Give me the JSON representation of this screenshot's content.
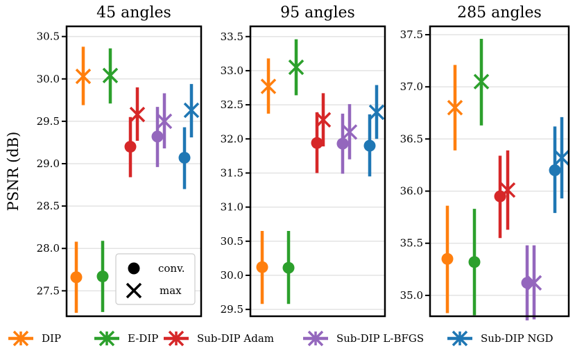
{
  "chart_data": {
    "type": "errorbar",
    "ylabel": "PSNR (dB)",
    "methods": [
      {
        "name": "DIP",
        "color": "#ff7f0e"
      },
      {
        "name": "E-DIP",
        "color": "#2ca02c"
      },
      {
        "name": "Sub-DIP Adam",
        "color": "#d62728"
      },
      {
        "name": "Sub-DIP L-BFGS",
        "color": "#9467bd"
      },
      {
        "name": "Sub-DIP NGD",
        "color": "#1f77b4"
      }
    ],
    "marker_legend": [
      {
        "marker": "circle",
        "label": "conv."
      },
      {
        "marker": "x",
        "label": "max"
      }
    ],
    "panels": [
      {
        "title": "45 angles",
        "ylim": [
          27.2,
          30.62
        ],
        "yticks": [
          27.5,
          28.0,
          28.5,
          29.0,
          29.5,
          30.0,
          30.5
        ],
        "tick_labels": [
          "27.5",
          "28.0",
          "28.5",
          "29.0",
          "29.5",
          "30.0",
          "30.5"
        ],
        "series": [
          {
            "method": "DIP",
            "conv": {
              "value": 27.66,
              "low": 27.24,
              "high": 28.08
            },
            "max": {
              "value": 30.03,
              "low": 29.69,
              "high": 30.38
            }
          },
          {
            "method": "E-DIP",
            "conv": {
              "value": 27.67,
              "low": 27.25,
              "high": 28.09
            },
            "max": {
              "value": 30.04,
              "low": 29.71,
              "high": 30.36
            }
          },
          {
            "method": "Sub-DIP Adam",
            "conv": {
              "value": 29.2,
              "low": 28.84,
              "high": 29.55
            },
            "max": {
              "value": 29.58,
              "low": 29.27,
              "high": 29.9
            }
          },
          {
            "method": "Sub-DIP L-BFGS",
            "conv": {
              "value": 29.32,
              "low": 28.96,
              "high": 29.67
            },
            "max": {
              "value": 29.5,
              "low": 29.18,
              "high": 29.83
            }
          },
          {
            "method": "Sub-DIP NGD",
            "conv": {
              "value": 29.07,
              "low": 28.7,
              "high": 29.43
            },
            "max": {
              "value": 29.63,
              "low": 29.31,
              "high": 29.94
            }
          }
        ]
      },
      {
        "title": "95 angles",
        "ylim": [
          29.4,
          33.65
        ],
        "yticks": [
          29.5,
          30.0,
          30.5,
          31.0,
          31.5,
          32.0,
          32.5,
          33.0,
          33.5
        ],
        "tick_labels": [
          "29.5",
          "30.0",
          "30.5",
          "31.0",
          "31.5",
          "32.0",
          "32.5",
          "33.0",
          "33.5"
        ],
        "series": [
          {
            "method": "DIP",
            "conv": {
              "value": 30.12,
              "low": 29.58,
              "high": 30.65
            },
            "max": {
              "value": 32.77,
              "low": 32.37,
              "high": 33.18
            }
          },
          {
            "method": "E-DIP",
            "conv": {
              "value": 30.11,
              "low": 29.58,
              "high": 30.65
            },
            "max": {
              "value": 33.05,
              "low": 32.64,
              "high": 33.46
            }
          },
          {
            "method": "Sub-DIP Adam",
            "conv": {
              "value": 31.94,
              "low": 31.5,
              "high": 32.39
            },
            "max": {
              "value": 32.28,
              "low": 31.89,
              "high": 32.67
            }
          },
          {
            "method": "Sub-DIP L-BFGS",
            "conv": {
              "value": 31.93,
              "low": 31.49,
              "high": 32.37
            },
            "max": {
              "value": 32.1,
              "low": 31.7,
              "high": 32.51
            }
          },
          {
            "method": "Sub-DIP NGD",
            "conv": {
              "value": 31.9,
              "low": 31.45,
              "high": 32.36
            },
            "max": {
              "value": 32.39,
              "low": 32.0,
              "high": 32.79
            }
          }
        ]
      },
      {
        "title": "285 angles",
        "ylim": [
          34.8,
          37.58
        ],
        "yticks": [
          35.0,
          35.5,
          36.0,
          36.5,
          37.0,
          37.5
        ],
        "tick_labels": [
          "35.0",
          "35.5",
          "36.0",
          "36.5",
          "37.0",
          "37.5"
        ],
        "series": [
          {
            "method": "DIP",
            "conv": {
              "value": 35.35,
              "low": 34.83,
              "high": 35.86
            },
            "max": {
              "value": 36.8,
              "low": 36.39,
              "high": 37.21
            }
          },
          {
            "method": "E-DIP",
            "conv": {
              "value": 35.32,
              "low": 34.81,
              "high": 35.83
            },
            "max": {
              "value": 37.05,
              "low": 36.63,
              "high": 37.46
            }
          },
          {
            "method": "Sub-DIP Adam",
            "conv": {
              "value": 35.95,
              "low": 35.55,
              "high": 36.34
            },
            "max": {
              "value": 36.01,
              "low": 35.63,
              "high": 36.39
            }
          },
          {
            "method": "Sub-DIP L-BFGS",
            "conv": {
              "value": 35.12,
              "low": 34.76,
              "high": 35.48
            },
            "max": {
              "value": 35.12,
              "low": 34.77,
              "high": 35.48
            }
          },
          {
            "method": "Sub-DIP NGD",
            "conv": {
              "value": 36.2,
              "low": 35.79,
              "high": 36.62
            },
            "max": {
              "value": 36.32,
              "low": 35.93,
              "high": 36.71
            }
          }
        ]
      }
    ]
  }
}
